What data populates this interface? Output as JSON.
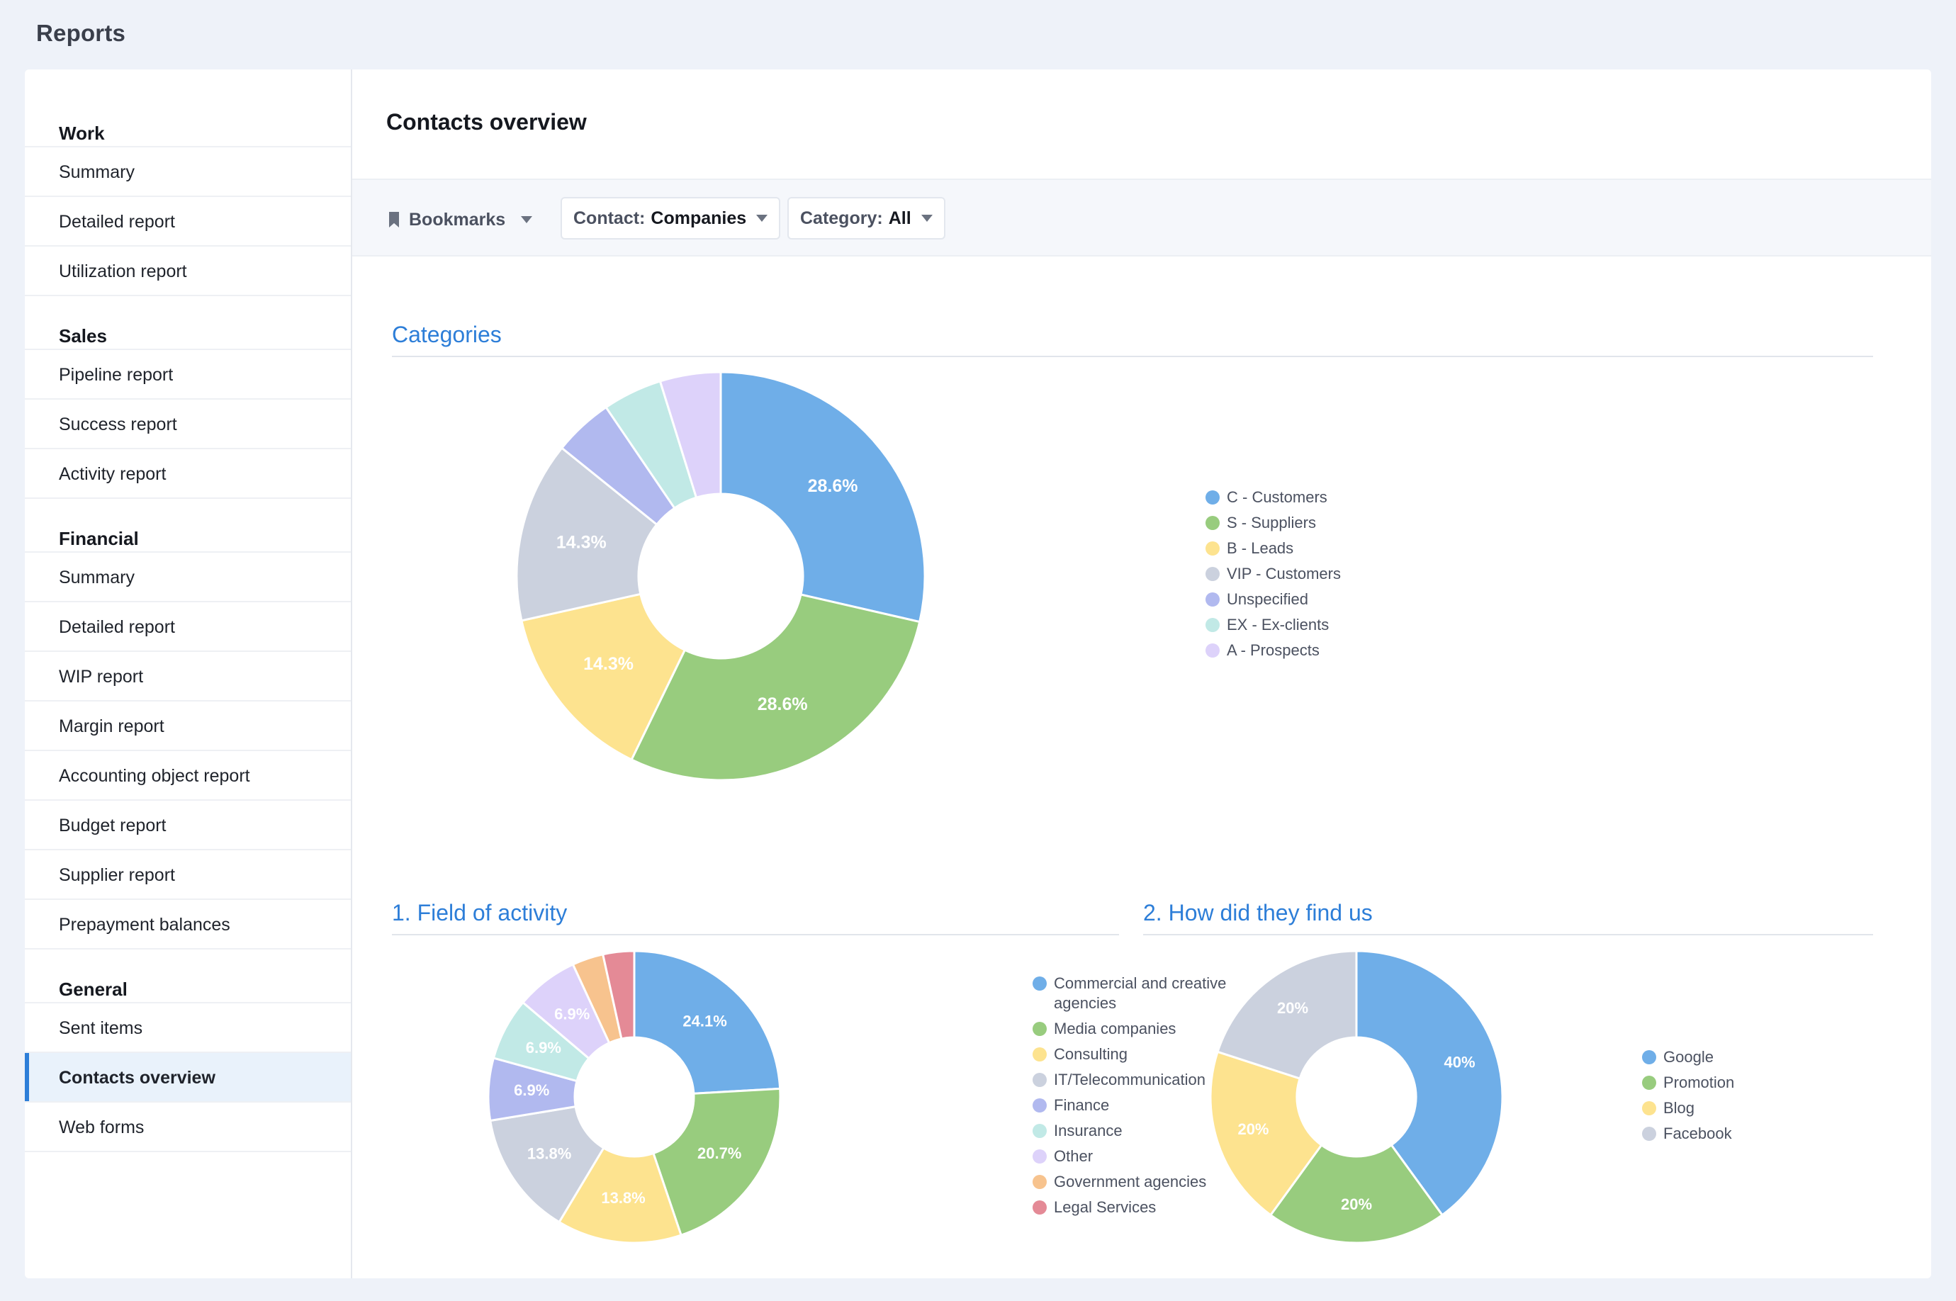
{
  "app_title": "Reports",
  "sidebar": {
    "groups": [
      {
        "title": "Work",
        "items": [
          "Summary",
          "Detailed report",
          "Utilization report"
        ]
      },
      {
        "title": "Sales",
        "items": [
          "Pipeline report",
          "Success report",
          "Activity report"
        ]
      },
      {
        "title": "Financial",
        "items": [
          "Summary",
          "Detailed report",
          "WIP report",
          "Margin report",
          "Accounting object report",
          "Budget report",
          "Supplier report",
          "Prepayment balances"
        ]
      },
      {
        "title": "General",
        "items": [
          "Sent items",
          "Contacts overview",
          "Web forms"
        ]
      }
    ],
    "active": "Contacts overview"
  },
  "main": {
    "title": "Contacts overview",
    "filters": {
      "bookmarks_label": "Bookmarks",
      "contact_label": "Contact:",
      "contact_value": "Companies",
      "category_label": "Category:",
      "category_value": "All"
    }
  },
  "chart_data": [
    {
      "type": "pie",
      "title": "Categories",
      "categories": [
        "C - Customers",
        "S - Suppliers",
        "B - Leads",
        "VIP - Customers",
        "Unspecified",
        "EX - Ex-clients",
        "A - Prospects"
      ],
      "values": [
        28.6,
        28.6,
        14.3,
        14.3,
        4.7,
        4.7,
        4.8
      ],
      "data_labels": [
        "28.6%",
        "28.6%",
        "14.3%",
        "14.3%",
        "",
        "",
        ""
      ],
      "colors": [
        "#6faee8",
        "#98cc7e",
        "#fde38f",
        "#cbd1de",
        "#b1b9ef",
        "#c1e9e6",
        "#ddd2fa"
      ],
      "donut": true,
      "legend": "right"
    },
    {
      "type": "pie",
      "title": "1. Field of activity",
      "categories": [
        "Commercial and creative agencies",
        "Media companies",
        "Consulting",
        "IT/Telecommunication",
        "Finance",
        "Insurance",
        "Other",
        "Government agencies",
        "Legal Services"
      ],
      "values": [
        24.1,
        20.7,
        13.8,
        13.8,
        6.9,
        6.9,
        6.9,
        3.45,
        3.45
      ],
      "data_labels": [
        "24.1%",
        "20.7%",
        "13.8%",
        "13.8%",
        "6.9%",
        "6.9%",
        "6.9%",
        "",
        ""
      ],
      "colors": [
        "#6faee8",
        "#98cc7e",
        "#fde38f",
        "#cbd1de",
        "#b1b9ef",
        "#c1e9e6",
        "#ddd2fa",
        "#f7c38e",
        "#e48a96"
      ],
      "donut": true,
      "legend": "right"
    },
    {
      "type": "pie",
      "title": "2. How did they find us",
      "categories": [
        "Google",
        "Promotion",
        "Blog",
        "Facebook"
      ],
      "values": [
        40,
        20,
        20,
        20
      ],
      "data_labels": [
        "40%",
        "20%",
        "20%",
        "20%"
      ],
      "colors": [
        "#6faee8",
        "#98cc7e",
        "#fde38f",
        "#cbd1de"
      ],
      "donut": true,
      "legend": "right"
    }
  ]
}
